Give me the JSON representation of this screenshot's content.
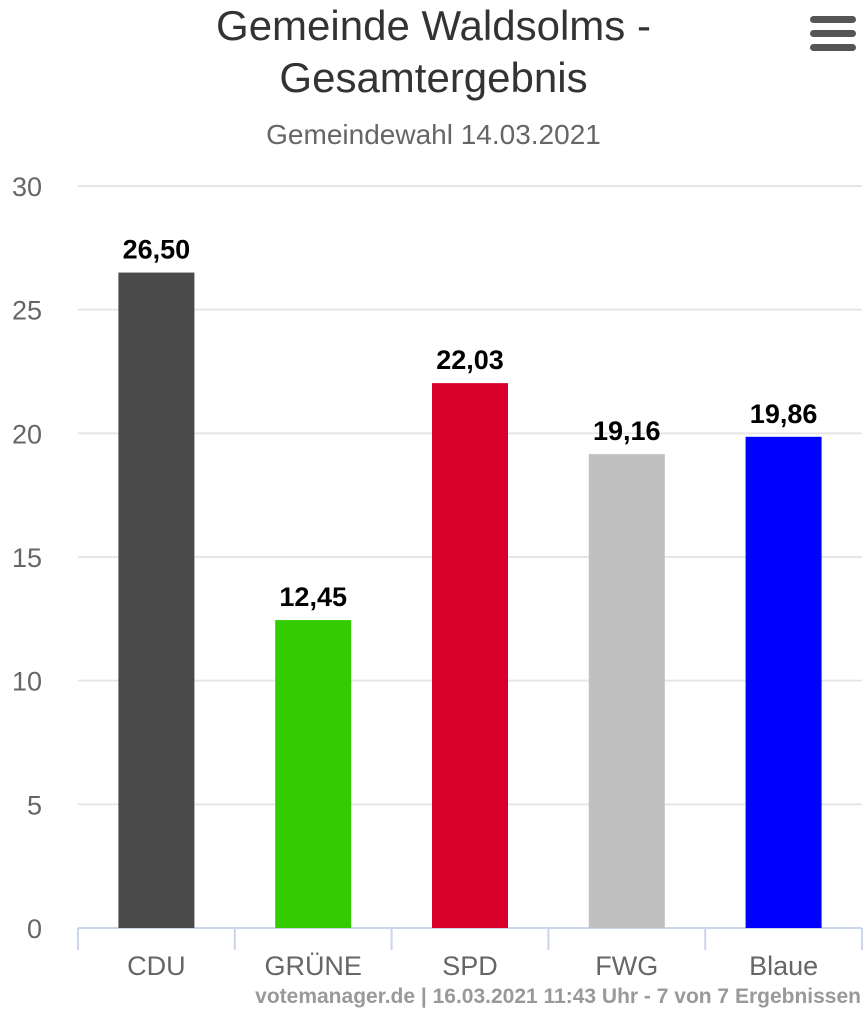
{
  "menu": {
    "icon": "hamburger-menu-icon"
  },
  "credits": "votemanager.de | 16.03.2021 11:43 Uhr - 7 von 7 Ergebnissen",
  "chart_data": {
    "type": "bar",
    "title": "Gemeinde Waldsolms - Gesamtergebnis",
    "subtitle": "Gemeindewahl 14.03.2021",
    "categories": [
      "CDU",
      "GRÜNE",
      "SPD",
      "FWG",
      "Blaue"
    ],
    "values": [
      26.5,
      12.45,
      22.03,
      19.16,
      19.86
    ],
    "data_labels": [
      "26,50",
      "12,45",
      "22,03",
      "19,16",
      "19,86"
    ],
    "colors": [
      "#4a4a4a",
      "#33cc00",
      "#d6002a",
      "#c0c0c0",
      "#0000ff"
    ],
    "ylim": [
      0,
      30
    ],
    "yticks": [
      0,
      5,
      10,
      15,
      20,
      25,
      30
    ],
    "grid": true,
    "legend": "none",
    "xlabel": "",
    "ylabel": ""
  }
}
